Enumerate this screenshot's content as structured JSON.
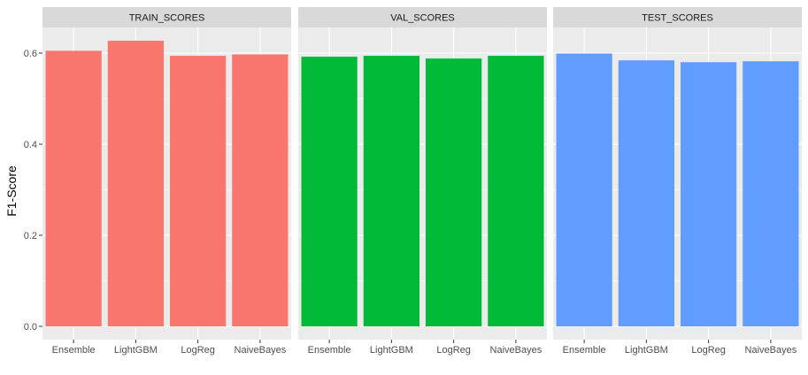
{
  "chart_data": {
    "type": "bar",
    "ylabel": "F1-Score",
    "xlabel": "",
    "ylim": [
      0,
      0.63
    ],
    "yticks": [
      0.0,
      0.2,
      0.4,
      0.6
    ],
    "ytick_labels": [
      "0.0",
      "0.2",
      "0.4",
      "0.6"
    ],
    "categories": [
      "Ensemble",
      "LightGBM",
      "LogReg",
      "NaiveBayes"
    ],
    "grid": true,
    "legend": "none",
    "colors": {
      "panel_background": "#EBEBEB",
      "strip_background": "#D9D9D9",
      "grid_major": "#FFFFFF"
    },
    "panels": [
      {
        "name": "TRAIN_SCORES",
        "color": "#F8766D",
        "values": [
          0.605,
          0.627,
          0.594,
          0.597
        ]
      },
      {
        "name": "VAL_SCORES",
        "color": "#00BA38",
        "values": [
          0.592,
          0.594,
          0.588,
          0.594
        ]
      },
      {
        "name": "TEST_SCORES",
        "color": "#619CFF",
        "values": [
          0.599,
          0.584,
          0.58,
          0.582
        ]
      }
    ]
  }
}
